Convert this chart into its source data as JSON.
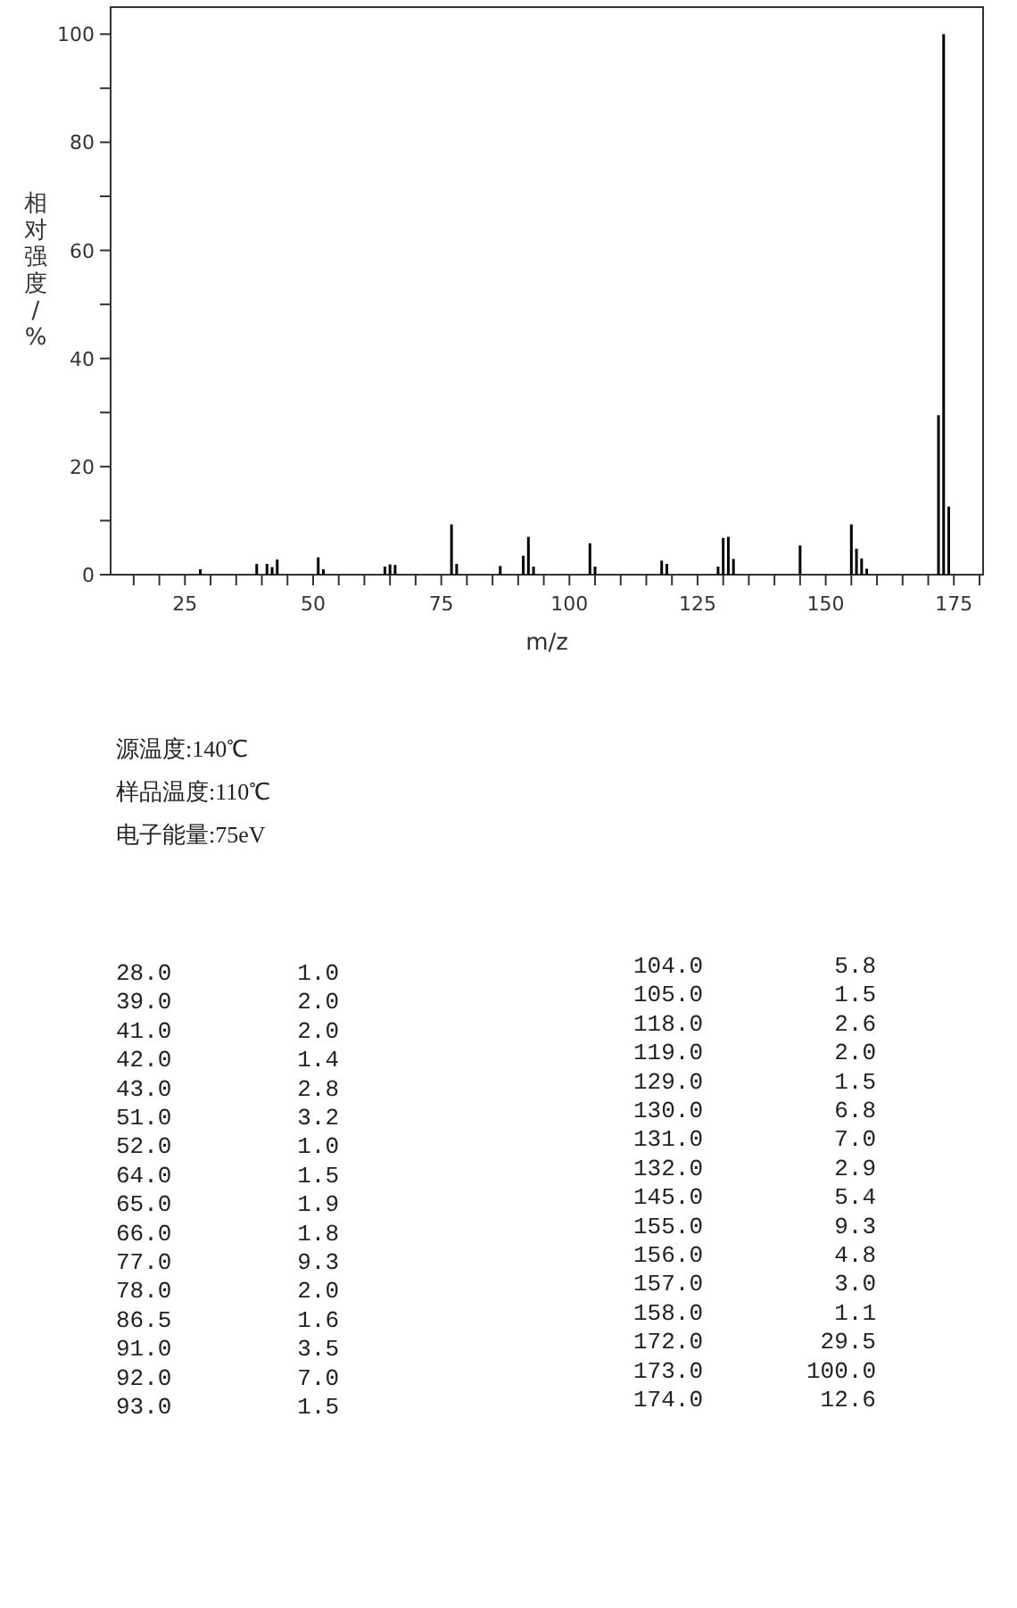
{
  "chart_data": [
    {
      "type": "bar",
      "xlabel": "m/z",
      "ylabel": "相对强度/%",
      "x": [
        28,
        39,
        41,
        42,
        43,
        51,
        52,
        64,
        65,
        66,
        77,
        78,
        86.5,
        91,
        92,
        93,
        104,
        105,
        118,
        119,
        129,
        130,
        131,
        132,
        145,
        155,
        156,
        157,
        158,
        172,
        173,
        174
      ],
      "values": [
        1.0,
        2.0,
        2.0,
        1.4,
        2.8,
        3.2,
        1.0,
        1.5,
        1.9,
        1.8,
        9.3,
        2.0,
        1.6,
        3.5,
        7.0,
        1.5,
        5.8,
        1.5,
        2.6,
        2.0,
        1.5,
        6.8,
        7.0,
        2.9,
        5.4,
        9.3,
        4.8,
        3.0,
        1.1,
        29.5,
        100.0,
        12.6
      ],
      "color": "#000000",
      "xlim": [
        10.5,
        180.7
      ],
      "ylim": [
        0,
        105
      ],
      "xticks": [
        {
          "value": 15,
          "label": null
        },
        {
          "value": 20,
          "label": null
        },
        25,
        {
          "value": 30,
          "label": null
        },
        {
          "value": 35,
          "label": null
        },
        {
          "value": 40,
          "label": null
        },
        {
          "value": 45,
          "label": null
        },
        50,
        {
          "value": 55,
          "label": null
        },
        {
          "value": 60,
          "label": null
        },
        {
          "value": 65,
          "label": null
        },
        {
          "value": 70,
          "label": null
        },
        75,
        {
          "value": 80,
          "label": null
        },
        {
          "value": 85,
          "label": null
        },
        {
          "value": 90,
          "label": null
        },
        {
          "value": 95,
          "label": null
        },
        100,
        {
          "value": 105,
          "label": null
        },
        {
          "value": 110,
          "label": null
        },
        {
          "value": 115,
          "label": null
        },
        {
          "value": 120,
          "label": null
        },
        125,
        {
          "value": 130,
          "label": null
        },
        {
          "value": 135,
          "label": null
        },
        {
          "value": 140,
          "label": null
        },
        {
          "value": 145,
          "label": null
        },
        150,
        {
          "value": 155,
          "label": null
        },
        {
          "value": 160,
          "label": null
        },
        {
          "value": 165,
          "label": null
        },
        {
          "value": 170,
          "label": null
        },
        175,
        {
          "value": 180,
          "label": null
        }
      ],
      "yticks": [
        0,
        {
          "value": 10,
          "label": null
        },
        20,
        {
          "value": 30,
          "label": null
        },
        40,
        {
          "value": 50,
          "label": null
        },
        60,
        {
          "value": 70,
          "label": null
        },
        80,
        {
          "value": 90,
          "label": null
        },
        100
      ]
    },
    {
      "type": "other",
      "annotations": [
        "源温度:140℃",
        "样品温度:110℃",
        "电子能量:75eV"
      ]
    },
    {
      "type": "other",
      "annotations": [
        "28.0",
        "1.0",
        "39.0",
        "2.0",
        "41.0",
        "2.0",
        "42.0",
        "1.4",
        "43.0",
        "2.8",
        "51.0",
        "3.2",
        "52.0",
        "1.0",
        "64.0",
        "1.5",
        "65.0",
        "1.9",
        "66.0",
        "1.8",
        "77.0",
        "9.3",
        "78.0",
        "2.0",
        "86.5",
        "1.6",
        "91.0",
        "3.5",
        "92.0",
        "7.0",
        "93.0",
        "1.5",
        "104.0",
        "5.8",
        "105.0",
        "1.5",
        "118.0",
        "2.6",
        "119.0",
        "2.0",
        "129.0",
        "1.5",
        "130.0",
        "6.8",
        "131.0",
        "7.0",
        "132.0",
        "2.9",
        "145.0",
        "5.4",
        "155.0",
        "9.3",
        "156.0",
        "4.8",
        "157.0",
        "3.0",
        "158.0",
        "1.1",
        "172.0",
        "29.5",
        "173.0",
        "100.0",
        "174.0",
        "12.6"
      ]
    }
  ]
}
